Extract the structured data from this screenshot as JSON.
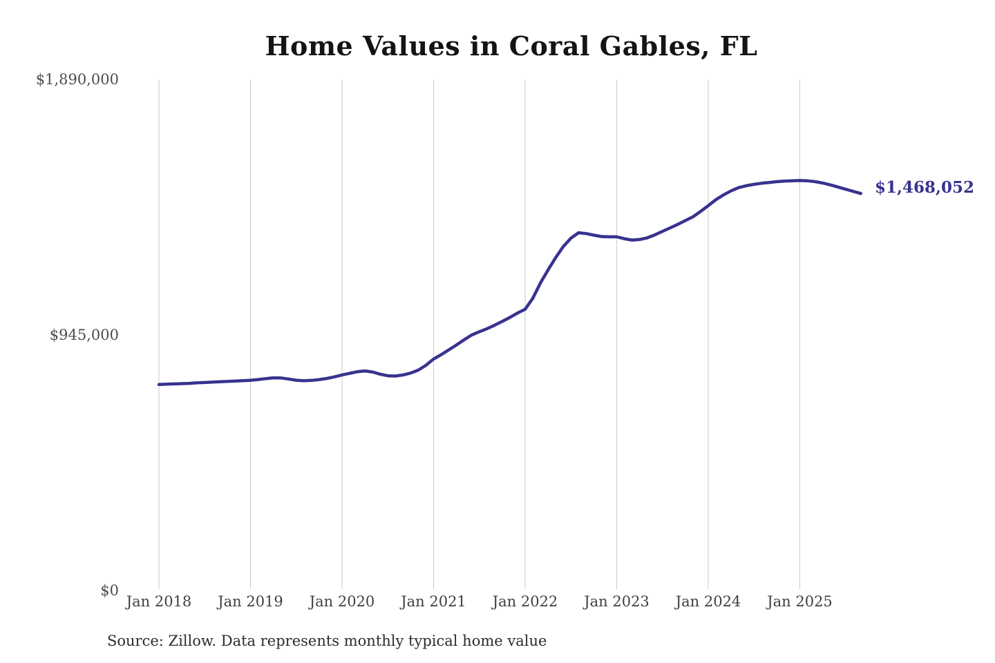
{
  "page": {
    "background_color": "#ffffff"
  },
  "chart": {
    "source_note": "Source: Zillow. Data represents monthly typical home value",
    "colors": {
      "title_text": "#141414",
      "axis_text": "#4c4c4c",
      "source_text": "#2b2b2b"
    }
  },
  "chart_data": {
    "type": "line",
    "title": "Home Values in Coral Gables, FL",
    "xlabel": "",
    "ylabel": "",
    "ylim": [
      0,
      1890000
    ],
    "grid": "vertical",
    "legend": "none",
    "line_color": "#38338f",
    "grid_color": "#c9c9c9",
    "x_tick_labels": [
      "Jan 2018",
      "Jan 2019",
      "Jan 2020",
      "Jan 2021",
      "Jan 2022",
      "Jan 2023",
      "Jan 2024",
      "Jan 2025"
    ],
    "y_ticks": [
      {
        "label": "$1,890,000",
        "value": 1890000
      },
      {
        "label": "$945,000",
        "value": 945000
      },
      {
        "label": "$0",
        "value": 0
      }
    ],
    "series": [
      {
        "name": "Monthly typical home value",
        "start_month": "2018-01",
        "end_month": "2025-09",
        "values": [
          762000,
          763000,
          764000,
          765000,
          766000,
          768000,
          769000,
          770500,
          772000,
          773000,
          774500,
          776000,
          777500,
          780000,
          783500,
          786500,
          786000,
          782000,
          777500,
          776000,
          777000,
          780000,
          784000,
          790000,
          797000,
          803000,
          809000,
          812000,
          808000,
          800000,
          794000,
          793000,
          797000,
          804000,
          815000,
          833000,
          856000,
          872000,
          890000,
          908000,
          927000,
          945000,
          957000,
          968000,
          981000,
          995000,
          1010000,
          1026000,
          1040000,
          1080000,
          1137000,
          1185000,
          1231000,
          1272000,
          1303000,
          1323000,
          1320000,
          1314000,
          1309000,
          1308000,
          1308000,
          1301000,
          1296000,
          1298000,
          1304000,
          1315000,
          1328000,
          1341000,
          1354000,
          1368000,
          1382000,
          1402000,
          1423000,
          1445000,
          1463000,
          1478000,
          1490000,
          1497000,
          1502000,
          1506000,
          1509000,
          1512000,
          1514000,
          1515000,
          1516000,
          1515000,
          1512000,
          1507000,
          1500000,
          1492000,
          1484000,
          1476000,
          1468052
        ]
      }
    ],
    "last_point": {
      "month": "2025-09",
      "value": 1468052,
      "label": "$1,468,052"
    }
  }
}
